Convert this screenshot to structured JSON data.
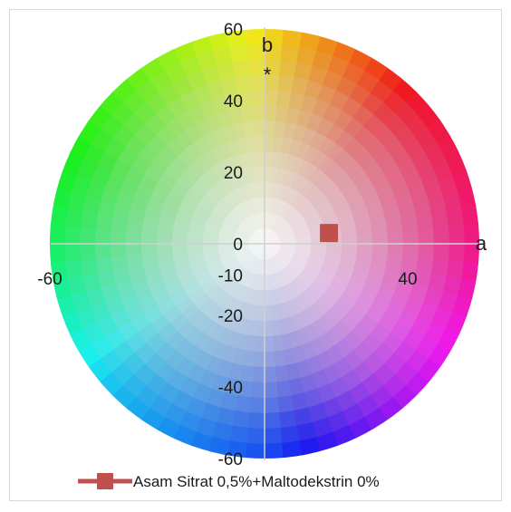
{
  "chart_data": {
    "type": "scatter",
    "background": "CIELAB a*b* color wheel",
    "x_range": [
      -60,
      60
    ],
    "y_range": [
      -60,
      60
    ],
    "x_tick_labels": [
      "-60",
      "40"
    ],
    "y_tick_labels": [
      "60",
      "40",
      "20",
      "0",
      "-10",
      "-20",
      "-40",
      "-60"
    ],
    "xlabel": "a",
    "ylabel": [
      "b",
      "*"
    ],
    "series": [
      {
        "name": "Asam Sitrat 0,5%+Maltodekstrin 0%",
        "color": "#c0504d",
        "marker": "square",
        "points": [
          {
            "a": 18,
            "b": 3
          }
        ]
      }
    ],
    "legend_position": "bottom"
  }
}
